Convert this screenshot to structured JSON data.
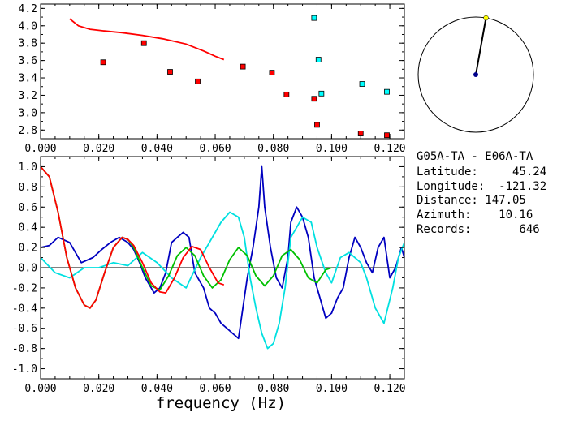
{
  "chart_data": [
    {
      "type": "scatter",
      "xlim": [
        0.0,
        0.125
      ],
      "ylim": [
        2.7,
        4.25
      ],
      "x_ticks": [
        "0.000",
        "0.020",
        "0.040",
        "0.060",
        "0.080",
        "0.100",
        "0.120"
      ],
      "y_ticks": [
        "4.2",
        "4.0",
        "3.8",
        "3.6",
        "3.4",
        "3.2",
        "3.0",
        "2.8"
      ],
      "curve": {
        "color": "#ff0000",
        "x": [
          0.01,
          0.013,
          0.017,
          0.022,
          0.028,
          0.035,
          0.042,
          0.05,
          0.056,
          0.06,
          0.063
        ],
        "y": [
          4.08,
          4.0,
          3.96,
          3.94,
          3.92,
          3.89,
          3.85,
          3.79,
          3.71,
          3.65,
          3.61
        ]
      },
      "series": [
        {
          "color": "#ff0000",
          "x": [
            0.0215,
            0.0355,
            0.0445,
            0.054,
            0.0695,
            0.0795,
            0.0845,
            0.094,
            0.095,
            0.11,
            0.119
          ],
          "y": [
            3.58,
            3.8,
            3.47,
            3.36,
            3.53,
            3.46,
            3.21,
            3.16,
            2.86,
            2.76,
            2.74
          ]
        },
        {
          "color": "#00ffff",
          "x": [
            0.094,
            0.0955,
            0.0965,
            0.1105,
            0.119
          ],
          "y": [
            4.09,
            3.61,
            3.22,
            3.33,
            3.24
          ]
        }
      ]
    },
    {
      "type": "line",
      "xlim": [
        0.0,
        0.125
      ],
      "ylim": [
        -1.1,
        1.1
      ],
      "x_ticks": [
        "0.000",
        "0.020",
        "0.040",
        "0.060",
        "0.080",
        "0.100",
        "0.120"
      ],
      "y_ticks": [
        "1.0",
        "0.8",
        "0.6",
        "0.4",
        "0.2",
        "0.0",
        "-0.2",
        "-0.4",
        "-0.6",
        "-0.8",
        "-1.0"
      ],
      "xlabel": "frequency (Hz)",
      "series": [
        {
          "color": "#0000c0",
          "x": [
            0.0,
            0.003,
            0.006,
            0.01,
            0.014,
            0.018,
            0.021,
            0.024,
            0.027,
            0.03,
            0.032,
            0.034,
            0.036,
            0.039,
            0.041,
            0.043,
            0.045,
            0.047,
            0.049,
            0.051,
            0.053,
            0.056,
            0.058,
            0.06,
            0.062,
            0.064,
            0.066,
            0.068,
            0.07,
            0.071,
            0.073,
            0.075,
            0.076,
            0.077,
            0.079,
            0.081,
            0.083,
            0.085,
            0.086,
            0.088,
            0.09,
            0.092,
            0.094,
            0.096,
            0.098,
            0.1,
            0.102,
            0.104,
            0.106,
            0.108,
            0.11,
            0.112,
            0.114,
            0.116,
            0.118,
            0.12,
            0.122,
            0.124,
            0.125
          ],
          "y": [
            0.2,
            0.22,
            0.3,
            0.25,
            0.05,
            0.1,
            0.18,
            0.25,
            0.3,
            0.25,
            0.18,
            0.05,
            -0.1,
            -0.25,
            -0.2,
            -0.05,
            0.25,
            0.3,
            0.35,
            0.3,
            -0.05,
            -0.2,
            -0.4,
            -0.45,
            -0.55,
            -0.6,
            -0.65,
            -0.7,
            -0.3,
            -0.1,
            0.2,
            0.6,
            1.0,
            0.6,
            0.2,
            -0.1,
            -0.2,
            0.1,
            0.45,
            0.6,
            0.5,
            0.3,
            -0.1,
            -0.3,
            -0.5,
            -0.45,
            -0.3,
            -0.2,
            0.1,
            0.3,
            0.2,
            0.05,
            -0.05,
            0.2,
            0.3,
            -0.1,
            0.0,
            0.2,
            0.1
          ]
        },
        {
          "color": "#00e0e0",
          "x": [
            0.0,
            0.005,
            0.01,
            0.015,
            0.02,
            0.025,
            0.03,
            0.035,
            0.04,
            0.045,
            0.05,
            0.055,
            0.058,
            0.062,
            0.065,
            0.068,
            0.07,
            0.072,
            0.074,
            0.076,
            0.078,
            0.08,
            0.082,
            0.084,
            0.086,
            0.088,
            0.09,
            0.093,
            0.095,
            0.098,
            0.1,
            0.103,
            0.106,
            0.11,
            0.112,
            0.115,
            0.118,
            0.121,
            0.123,
            0.125
          ],
          "y": [
            0.1,
            -0.05,
            -0.1,
            0.0,
            0.0,
            0.05,
            0.02,
            0.15,
            0.05,
            -0.1,
            -0.2,
            0.1,
            0.25,
            0.45,
            0.55,
            0.5,
            0.3,
            -0.1,
            -0.4,
            -0.65,
            -0.8,
            -0.75,
            -0.55,
            -0.2,
            0.3,
            0.4,
            0.5,
            0.45,
            0.2,
            -0.05,
            -0.15,
            0.1,
            0.15,
            0.05,
            -0.1,
            -0.4,
            -0.55,
            -0.2,
            0.1,
            0.25
          ]
        },
        {
          "color": "#00c000",
          "x": [
            0.0,
            0.003,
            0.006,
            0.009,
            0.012,
            0.015,
            0.017,
            0.019,
            0.022,
            0.025,
            0.028,
            0.03,
            0.032,
            0.035,
            0.038,
            0.041,
            0.044,
            0.047,
            0.05,
            0.053,
            0.056,
            0.059,
            0.062,
            0.065,
            0.068,
            0.071,
            0.074,
            0.077,
            0.08,
            0.083,
            0.086,
            0.089,
            0.092,
            0.095,
            0.098,
            0.1
          ],
          "y": [
            1.0,
            0.9,
            0.55,
            0.1,
            -0.2,
            -0.37,
            -0.4,
            -0.32,
            -0.05,
            0.2,
            0.3,
            0.28,
            0.2,
            0.0,
            -0.18,
            -0.22,
            -0.08,
            0.12,
            0.2,
            0.12,
            -0.08,
            -0.2,
            -0.12,
            0.08,
            0.2,
            0.12,
            -0.08,
            -0.18,
            -0.08,
            0.12,
            0.18,
            0.08,
            -0.1,
            -0.15,
            -0.02,
            0.0
          ]
        },
        {
          "color": "#ff0000",
          "x": [
            0.0,
            0.003,
            0.006,
            0.009,
            0.012,
            0.015,
            0.017,
            0.019,
            0.022,
            0.025,
            0.028,
            0.03,
            0.032,
            0.035,
            0.038,
            0.041,
            0.043,
            0.046,
            0.049,
            0.052,
            0.055,
            0.058,
            0.061,
            0.063
          ],
          "y": [
            1.0,
            0.9,
            0.55,
            0.1,
            -0.2,
            -0.37,
            -0.4,
            -0.32,
            -0.05,
            0.2,
            0.3,
            0.28,
            0.22,
            0.05,
            -0.15,
            -0.24,
            -0.25,
            -0.1,
            0.1,
            0.21,
            0.18,
            0.0,
            -0.15,
            -0.17
          ]
        }
      ]
    }
  ],
  "compass": {
    "azimuth": 10.16,
    "needle_color": "#000000",
    "center_color": "#00008b",
    "tip_color": "#ffff00"
  },
  "info": {
    "stations": "G05A-TA - E06A-TA",
    "latitude": "Latitude:     45.24",
    "longitude": "Longitude:  -121.32",
    "distance": "Distance: 147.05",
    "azimuth": "Azimuth:    10.16",
    "records": "Records:       646"
  }
}
